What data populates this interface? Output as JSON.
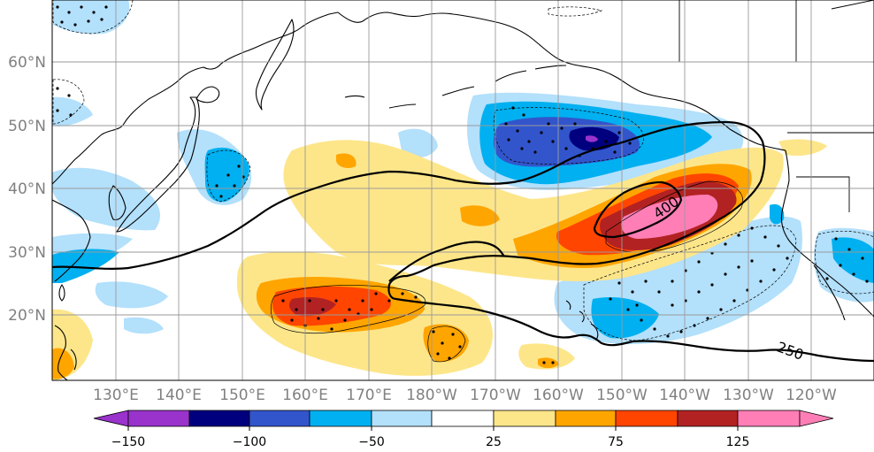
{
  "map": {
    "lat_labels": [
      "60°N",
      "50°N",
      "40°N",
      "30°N",
      "20°N"
    ],
    "lon_labels": [
      "130°E",
      "140°E",
      "150°E",
      "160°E",
      "170°E",
      "180°W",
      "170°W",
      "160°W",
      "150°W",
      "140°W",
      "130°W",
      "120°W"
    ],
    "contour_labels": [
      "250",
      "400"
    ],
    "colors": {
      "land_outline": "#000000",
      "gridline": "#9a9a9a",
      "contour": "#000000"
    }
  },
  "colorbar": {
    "tick_labels": [
      "−150",
      "−100",
      "−50",
      "25",
      "75",
      "125"
    ],
    "colors": [
      "#9933cc",
      "#00007f",
      "#3355cc",
      "#00b0f0",
      "#b3e0fb",
      "#ffffff",
      "#fde68a",
      "#ffa500",
      "#ff4500",
      "#b22222",
      "#ff7eb6"
    ]
  }
}
